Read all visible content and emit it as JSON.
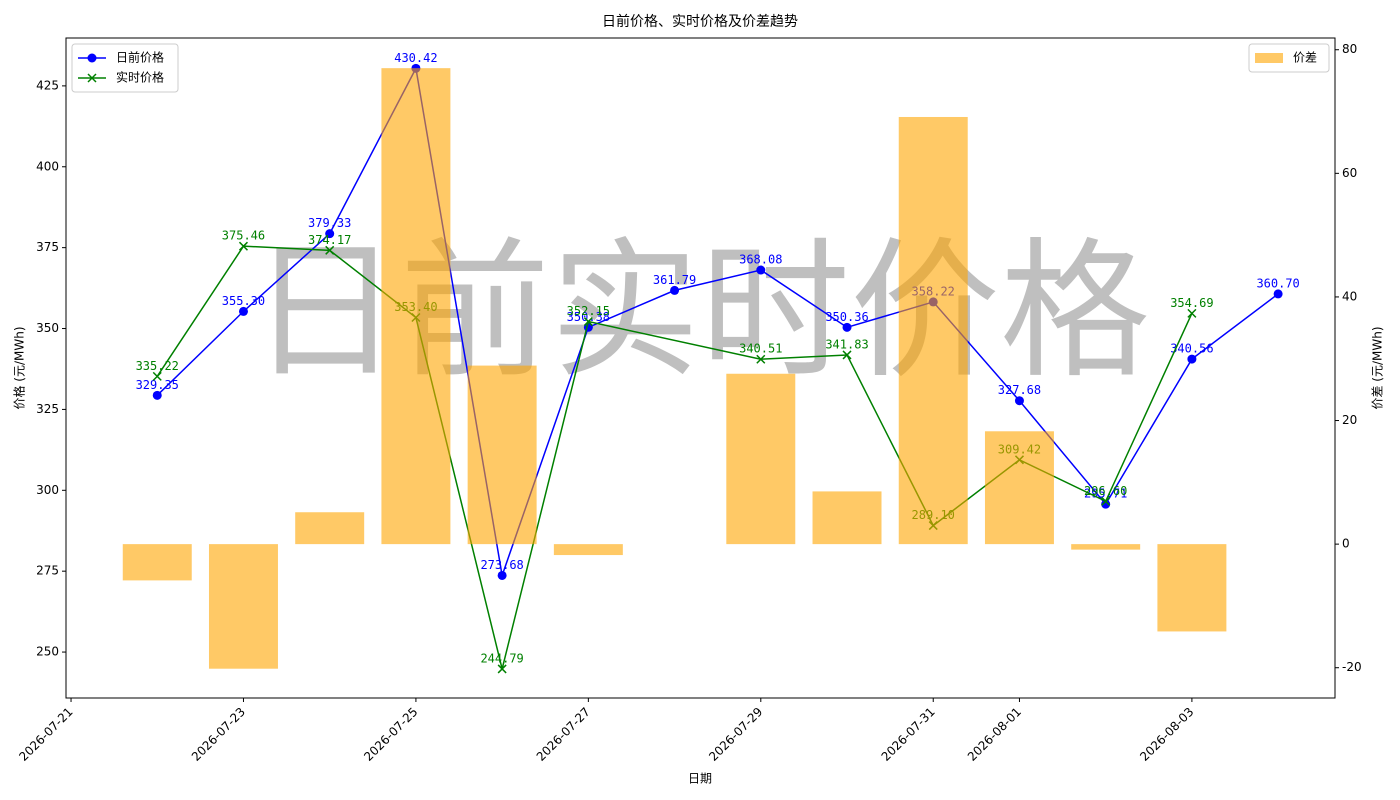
{
  "chart_data": {
    "type": "line",
    "title": "日前价格、实时价格及价差趋势",
    "xlabel": "日期",
    "ylabel": "价格 (元/MWh)",
    "y2label": "价差 (元/MWh)",
    "watermark": "日前实时价格",
    "xlim": [
      "2026-07-20T22:36",
      "2026-08-04T15:50"
    ],
    "xticks": [
      "2026-07-21",
      "2026-07-23",
      "2026-07-25",
      "2026-07-27",
      "2026-07-29",
      "2026-07-31",
      "2026-08-01",
      "2026-08-03"
    ],
    "ylim": [
      235.8,
      439.8
    ],
    "yticks": [
      250,
      275,
      300,
      325,
      350,
      375,
      400,
      425
    ],
    "y2lim": [
      -24.9,
      81.9
    ],
    "y2ticks": [
      -20,
      0,
      20,
      40,
      60,
      80
    ],
    "legend": "upper left",
    "legend2": "upper right",
    "series": [
      {
        "name": "日前价格",
        "type": "line",
        "marker": "circle",
        "color": "#0000ff",
        "x": [
          "2026-07-22",
          "2026-07-23",
          "2026-07-24",
          "2026-07-25",
          "2026-07-26",
          "2026-07-27",
          "2026-07-28",
          "2026-07-29",
          "2026-07-30",
          "2026-07-31",
          "2026-08-01",
          "2026-08-02",
          "2026-08-03",
          "2026-08-04"
        ],
        "values": [
          329.35,
          355.3,
          379.33,
          430.42,
          273.68,
          350.38,
          361.79,
          368.08,
          350.36,
          358.22,
          327.68,
          295.71,
          340.56,
          360.7
        ],
        "value_labels": [
          "329.35",
          "355.30",
          "379.33",
          "430.42",
          "273.68",
          "350.38",
          "361.79",
          "368.08",
          "350.36",
          "358.22",
          "327.68",
          "295.71",
          "340.56",
          "360.70"
        ]
      },
      {
        "name": "实时价格",
        "type": "line",
        "marker": "x",
        "color": "#008000",
        "x": [
          "2026-07-22",
          "2026-07-23",
          "2026-07-24",
          "2026-07-25",
          "2026-07-26",
          "2026-07-27",
          "2026-07-29",
          "2026-07-30",
          "2026-07-31",
          "2026-08-01",
          "2026-08-02",
          "2026-08-03"
        ],
        "values": [
          335.22,
          375.46,
          374.17,
          353.4,
          244.79,
          352.15,
          340.51,
          341.83,
          289.1,
          309.42,
          296.6,
          354.69
        ],
        "value_labels": [
          "335.22",
          "375.46",
          "374.17",
          "353.40",
          "244.79",
          "352.15",
          "340.51",
          "341.83",
          "289.10",
          "309.42",
          "296.60",
          "354.69"
        ]
      },
      {
        "name": "价差",
        "type": "bar",
        "axis": "y2",
        "color": "#ffa500",
        "opacity": 0.6,
        "x": [
          "2026-07-22",
          "2026-07-23",
          "2026-07-24",
          "2026-07-25",
          "2026-07-26",
          "2026-07-27",
          "2026-07-29",
          "2026-07-30",
          "2026-07-31",
          "2026-08-01",
          "2026-08-02",
          "2026-08-03"
        ],
        "values": [
          -5.87,
          -20.16,
          5.16,
          77.02,
          28.89,
          -1.77,
          27.57,
          8.53,
          69.12,
          18.26,
          -0.89,
          -14.13
        ]
      }
    ]
  }
}
